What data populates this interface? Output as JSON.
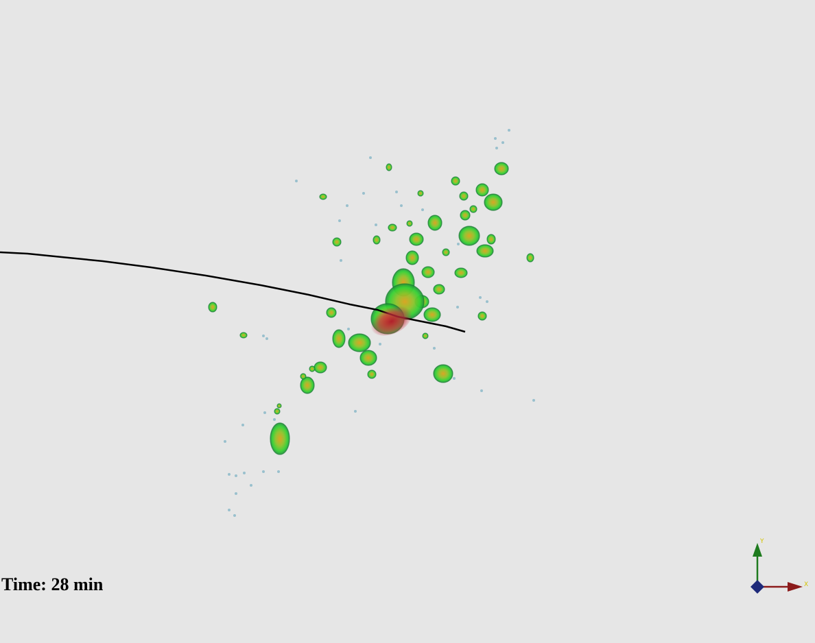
{
  "overlay": {
    "time_text": "Time: 28 min"
  },
  "orientation_axes": {
    "x_label": "X",
    "y_label": "Y",
    "colors": {
      "x_axis": "#8b1a1a",
      "y_axis": "#1e7b1e",
      "z_axis": "#1e2a7a",
      "label": "#d4c400"
    }
  },
  "rendering": {
    "background": "#e6e6e6",
    "colormap": [
      "#7fb3c4",
      "#33cc33",
      "#d9a21a",
      "#b0182a"
    ],
    "trajectory_color": "#000000"
  }
}
